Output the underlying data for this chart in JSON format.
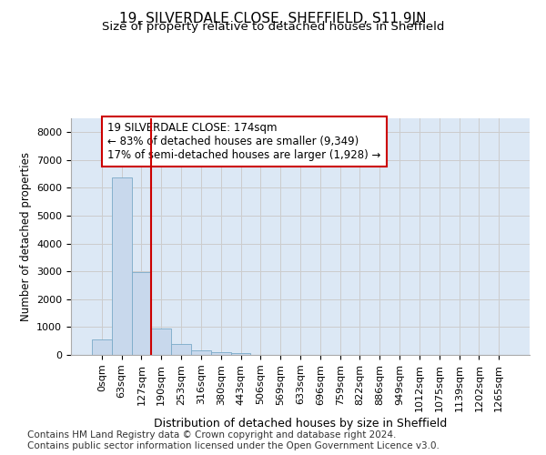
{
  "title": "19, SILVERDALE CLOSE, SHEFFIELD, S11 9JN",
  "subtitle": "Size of property relative to detached houses in Sheffield",
  "xlabel": "Distribution of detached houses by size in Sheffield",
  "ylabel": "Number of detached properties",
  "footer_line1": "Contains HM Land Registry data © Crown copyright and database right 2024.",
  "footer_line2": "Contains public sector information licensed under the Open Government Licence v3.0.",
  "bar_labels": [
    "0sqm",
    "63sqm",
    "127sqm",
    "190sqm",
    "253sqm",
    "316sqm",
    "380sqm",
    "443sqm",
    "506sqm",
    "569sqm",
    "633sqm",
    "696sqm",
    "759sqm",
    "822sqm",
    "886sqm",
    "949sqm",
    "1012sqm",
    "1075sqm",
    "1139sqm",
    "1202sqm",
    "1265sqm"
  ],
  "bar_values": [
    550,
    6380,
    2960,
    950,
    380,
    170,
    100,
    60,
    0,
    0,
    0,
    0,
    0,
    0,
    0,
    0,
    0,
    0,
    0,
    0,
    0
  ],
  "bar_color": "#c8d8ec",
  "bar_edgecolor": "#7aaac8",
  "vline_x": 2.5,
  "vline_color": "#cc0000",
  "annotation_text": "19 SILVERDALE CLOSE: 174sqm\n← 83% of detached houses are smaller (9,349)\n17% of semi-detached houses are larger (1,928) →",
  "annotation_box_color": "#ffffff",
  "annotation_box_edgecolor": "#cc0000",
  "ylim": [
    0,
    8500
  ],
  "yticks": [
    0,
    1000,
    2000,
    3000,
    4000,
    5000,
    6000,
    7000,
    8000
  ],
  "grid_color": "#cccccc",
  "background_color": "#dce8f5",
  "title_fontsize": 11,
  "subtitle_fontsize": 9.5,
  "xlabel_fontsize": 9,
  "ylabel_fontsize": 8.5,
  "tick_fontsize": 8,
  "annot_fontsize": 8.5,
  "footer_fontsize": 7.5
}
